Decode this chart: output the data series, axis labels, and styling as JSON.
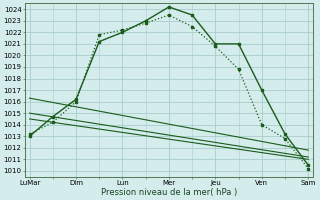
{
  "xlabel": "Pression niveau de la mer( hPa )",
  "ylim": [
    1009.5,
    1024.5
  ],
  "yticks": [
    1010,
    1011,
    1012,
    1013,
    1014,
    1015,
    1016,
    1017,
    1018,
    1019,
    1020,
    1021,
    1022,
    1023,
    1024
  ],
  "xtick_labels": [
    "LuMar",
    "Dim",
    "Lun",
    "Mer",
    "Jeu",
    "Ven",
    "Sam"
  ],
  "xtick_positions": [
    0,
    2,
    4,
    6,
    8,
    10,
    12
  ],
  "bg_color": "#d4ecec",
  "grid_color": "#aacccc",
  "line_color": "#1a5c1a",
  "line1_x": [
    0,
    1,
    2,
    3,
    4,
    5,
    6,
    7,
    8,
    9,
    10,
    11,
    12
  ],
  "line1_y": [
    1013.0,
    1014.7,
    1016.2,
    1021.2,
    1022.0,
    1023.0,
    1024.2,
    1023.5,
    1021.0,
    1021.0,
    1017.0,
    1013.2,
    1010.5
  ],
  "line2_x": [
    0,
    1,
    2,
    3,
    4,
    5,
    6,
    7,
    8,
    9,
    10,
    11,
    12
  ],
  "line2_y": [
    1013.2,
    1014.2,
    1016.0,
    1021.8,
    1022.2,
    1022.8,
    1023.5,
    1022.5,
    1020.8,
    1018.8,
    1014.0,
    1012.8,
    1010.2
  ],
  "line3_x": [
    0,
    12
  ],
  "line3_y": [
    1015.0,
    1011.2
  ],
  "line4_x": [
    0,
    12
  ],
  "line4_y": [
    1014.5,
    1011.0
  ],
  "line5_x": [
    0,
    12
  ],
  "line5_y": [
    1016.3,
    1011.8
  ]
}
